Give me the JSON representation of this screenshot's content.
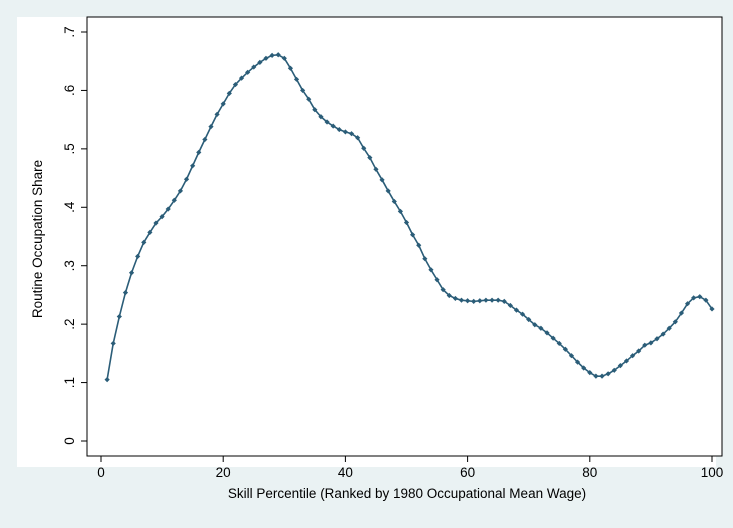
{
  "chart_data": {
    "type": "line",
    "xlabel": "Skill Percentile (Ranked by 1980 Occupational Mean Wage)",
    "ylabel": "Routine Occupation Share",
    "xlim": [
      0,
      100
    ],
    "ylim": [
      0,
      0.7
    ],
    "xticks": [
      0,
      20,
      40,
      60,
      80,
      100
    ],
    "yticks": [
      0,
      0.1,
      0.2,
      0.3,
      0.4,
      0.5,
      0.6,
      0.7
    ],
    "xtick_labels": [
      "0",
      "20",
      "40",
      "60",
      "80",
      "100"
    ],
    "ytick_labels": [
      "0",
      ".1",
      ".2",
      ".3",
      ".4",
      ".5",
      ".6",
      ".7"
    ],
    "grid": false,
    "marker": "diamond",
    "series": [
      {
        "color": "#2b5d78",
        "x": [
          1,
          2,
          3,
          4,
          5,
          6,
          7,
          8,
          9,
          10,
          11,
          12,
          13,
          14,
          15,
          16,
          17,
          18,
          19,
          20,
          21,
          22,
          23,
          24,
          25,
          26,
          27,
          28,
          29,
          30,
          31,
          32,
          33,
          34,
          35,
          36,
          37,
          38,
          39,
          40,
          41,
          42,
          43,
          44,
          45,
          46,
          47,
          48,
          49,
          50,
          51,
          52,
          53,
          54,
          55,
          56,
          57,
          58,
          59,
          60,
          61,
          62,
          63,
          64,
          65,
          66,
          67,
          68,
          69,
          70,
          71,
          72,
          73,
          74,
          75,
          76,
          77,
          78,
          79,
          80,
          81,
          82,
          83,
          84,
          85,
          86,
          87,
          88,
          89,
          90,
          91,
          92,
          93,
          94,
          95,
          96,
          97,
          98,
          99,
          100
        ],
        "y": [
          0.105,
          0.167,
          0.213,
          0.254,
          0.288,
          0.316,
          0.34,
          0.357,
          0.373,
          0.384,
          0.397,
          0.412,
          0.428,
          0.448,
          0.471,
          0.494,
          0.516,
          0.538,
          0.559,
          0.577,
          0.595,
          0.61,
          0.621,
          0.631,
          0.64,
          0.648,
          0.655,
          0.66,
          0.661,
          0.655,
          0.638,
          0.619,
          0.6,
          0.585,
          0.567,
          0.555,
          0.546,
          0.539,
          0.533,
          0.529,
          0.526,
          0.519,
          0.501,
          0.485,
          0.465,
          0.447,
          0.428,
          0.41,
          0.393,
          0.374,
          0.353,
          0.335,
          0.312,
          0.293,
          0.276,
          0.259,
          0.249,
          0.244,
          0.241,
          0.24,
          0.239,
          0.24,
          0.241,
          0.241,
          0.241,
          0.239,
          0.232,
          0.224,
          0.217,
          0.208,
          0.199,
          0.193,
          0.185,
          0.176,
          0.167,
          0.157,
          0.146,
          0.135,
          0.125,
          0.117,
          0.111,
          0.111,
          0.115,
          0.121,
          0.129,
          0.137,
          0.146,
          0.154,
          0.164,
          0.168,
          0.175,
          0.183,
          0.193,
          0.204,
          0.219,
          0.235,
          0.245,
          0.247,
          0.241,
          0.226
        ]
      }
    ]
  }
}
